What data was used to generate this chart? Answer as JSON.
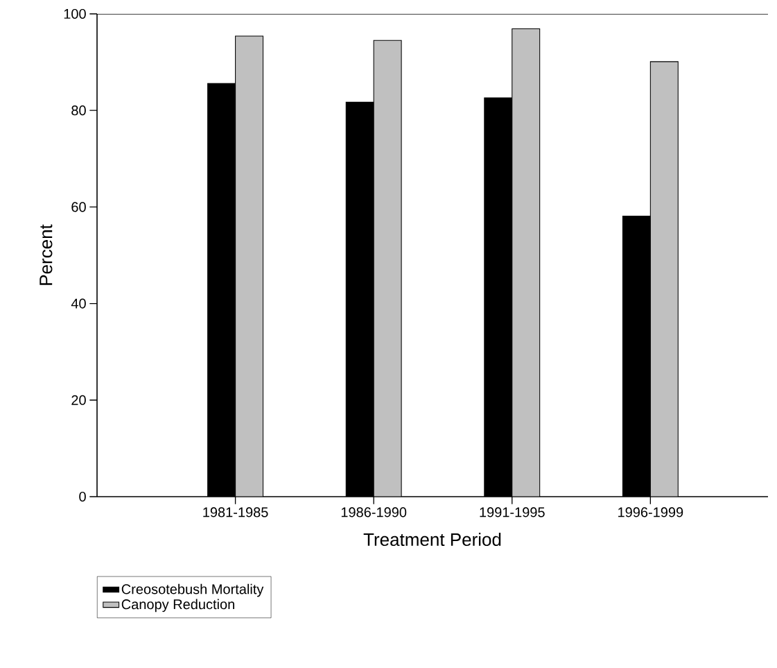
{
  "chart_data": {
    "type": "bar",
    "xlabel": "Treatment Period",
    "ylabel": "Percent",
    "categories": [
      "1981-1985",
      "1986-1990",
      "1991-1995",
      "1996-1999"
    ],
    "series": [
      {
        "name": "Creosotebush Mortality",
        "color": "#000000",
        "values": [
          85.6,
          81.7,
          82.6,
          58.1
        ]
      },
      {
        "name": "Canopy Reduction",
        "color": "#c0c0c0",
        "values": [
          95.4,
          94.5,
          96.9,
          90.1
        ]
      }
    ],
    "ylim": [
      0,
      100
    ],
    "yticks": [
      0,
      20,
      40,
      60,
      80,
      100
    ],
    "grid": false,
    "legend": "bottom left"
  }
}
